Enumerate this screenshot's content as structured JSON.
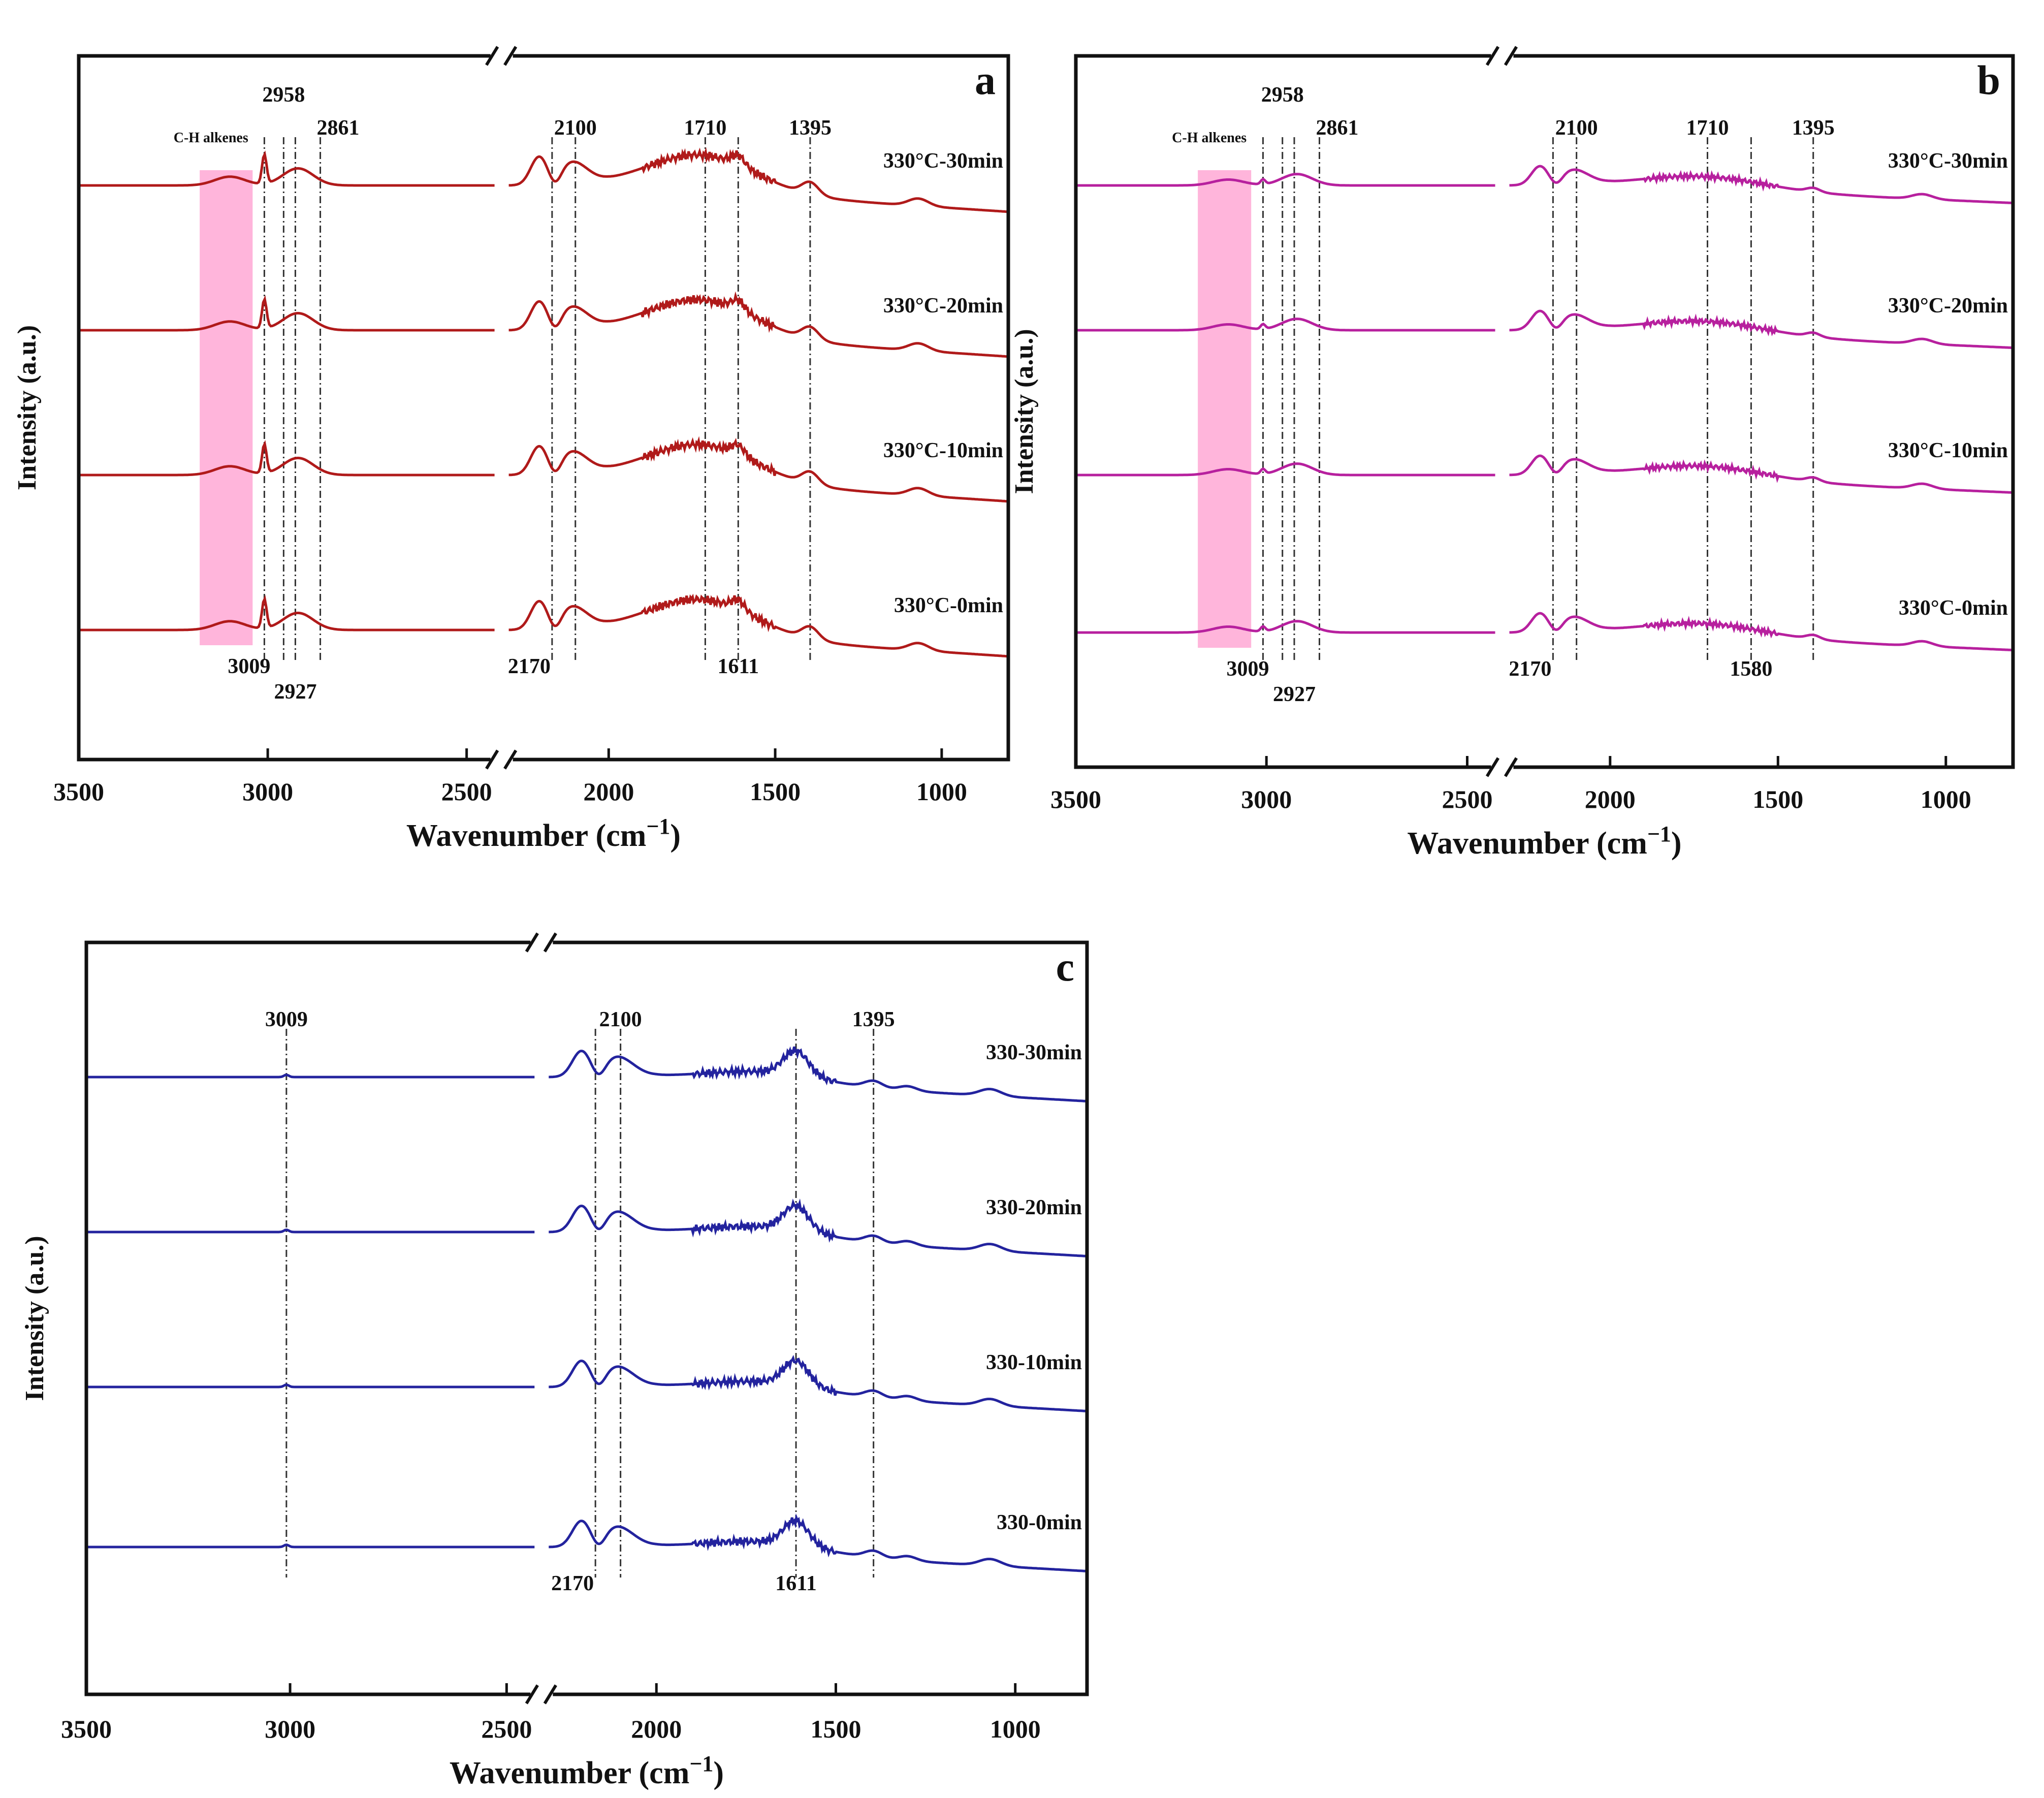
{
  "figure": {
    "description_label": "FTIR spectra panels"
  },
  "chart_data": [
    {
      "type": "line",
      "panel_letter": "a",
      "color": "#b01a1a",
      "xlabel": "Wavenumber (cm",
      "xlabel_sup": "−1",
      "xlabel_close": ")",
      "ylabel": "Intensity (a.u.)",
      "xlim": [
        3500,
        800
      ],
      "axis_break": [
        2400,
        2300
      ],
      "x_ticks": [
        "3500",
        "3000",
        "2500",
        "2000",
        "1500",
        "1000"
      ],
      "shade": {
        "label": "C-H alkenes",
        "from": 3180,
        "to": 3040,
        "color": "#ff9ccf"
      },
      "series": [
        {
          "name": "330°C-30min"
        },
        {
          "name": "330°C-20min"
        },
        {
          "name": "330°C-10min"
        },
        {
          "name": "330°C-0min"
        }
      ],
      "peak_lines": [
        3009,
        2958,
        2927,
        2861,
        2170,
        2100,
        1710,
        1611,
        1395
      ],
      "top_labels": [
        {
          "text": "2958",
          "x": 2958
        },
        {
          "text": "2861",
          "x": 2861
        },
        {
          "text": "2100",
          "x": 2100
        },
        {
          "text": "1710",
          "x": 1710
        },
        {
          "text": "1395",
          "x": 1395
        }
      ],
      "bottom_labels": [
        {
          "text": "3009",
          "x": 3009
        },
        {
          "text": "2927",
          "x": 2927
        },
        {
          "text": "2170",
          "x": 2170
        },
        {
          "text": "1611",
          "x": 1611
        }
      ]
    },
    {
      "type": "line",
      "panel_letter": "b",
      "color": "#b7209e",
      "xlabel": "Wavenumber (cm",
      "xlabel_sup": "−1",
      "xlabel_close": ")",
      "ylabel": "Intensity (a.u.)",
      "xlim": [
        3500,
        800
      ],
      "axis_break": [
        2400,
        2300
      ],
      "x_ticks": [
        "3500",
        "3000",
        "2500",
        "2000",
        "1500",
        "1000"
      ],
      "shade": {
        "label": "C-H alkenes",
        "from": 3180,
        "to": 3040,
        "color": "#ff9ccf"
      },
      "series": [
        {
          "name": "330°C-30min"
        },
        {
          "name": "330°C-20min"
        },
        {
          "name": "330°C-10min"
        },
        {
          "name": "330°C-0min"
        }
      ],
      "peak_lines": [
        3009,
        2958,
        2927,
        2861,
        2170,
        2100,
        1710,
        1580,
        1395
      ],
      "top_labels": [
        {
          "text": "2958",
          "x": 2958
        },
        {
          "text": "2861",
          "x": 2861
        },
        {
          "text": "2100",
          "x": 2100
        },
        {
          "text": "1710",
          "x": 1710
        },
        {
          "text": "1395",
          "x": 1395
        }
      ],
      "bottom_labels": [
        {
          "text": "3009",
          "x": 3009
        },
        {
          "text": "2927",
          "x": 2927
        },
        {
          "text": "2170",
          "x": 2170
        },
        {
          "text": "1580",
          "x": 1580
        }
      ]
    },
    {
      "type": "line",
      "panel_letter": "c",
      "color": "#23239e",
      "xlabel": "Wavenumber (cm",
      "xlabel_sup": "−1",
      "xlabel_close": ")",
      "ylabel": "Intensity (a.u.)",
      "xlim": [
        3500,
        800
      ],
      "axis_break": [
        2400,
        2300
      ],
      "x_ticks": [
        "3500",
        "3000",
        "2500",
        "2000",
        "1500",
        "1000"
      ],
      "shade": null,
      "series": [
        {
          "name": "330-30min"
        },
        {
          "name": "330-20min"
        },
        {
          "name": "330-10min"
        },
        {
          "name": "330-0min"
        }
      ],
      "peak_lines": [
        3009,
        2170,
        2100,
        1611,
        1395
      ],
      "top_labels": [
        {
          "text": "3009",
          "x": 3009
        },
        {
          "text": "2100",
          "x": 2100
        },
        {
          "text": "1395",
          "x": 1395
        }
      ],
      "bottom_labels": [
        {
          "text": "2170",
          "x": 2170
        },
        {
          "text": "1611",
          "x": 1611
        }
      ]
    }
  ]
}
